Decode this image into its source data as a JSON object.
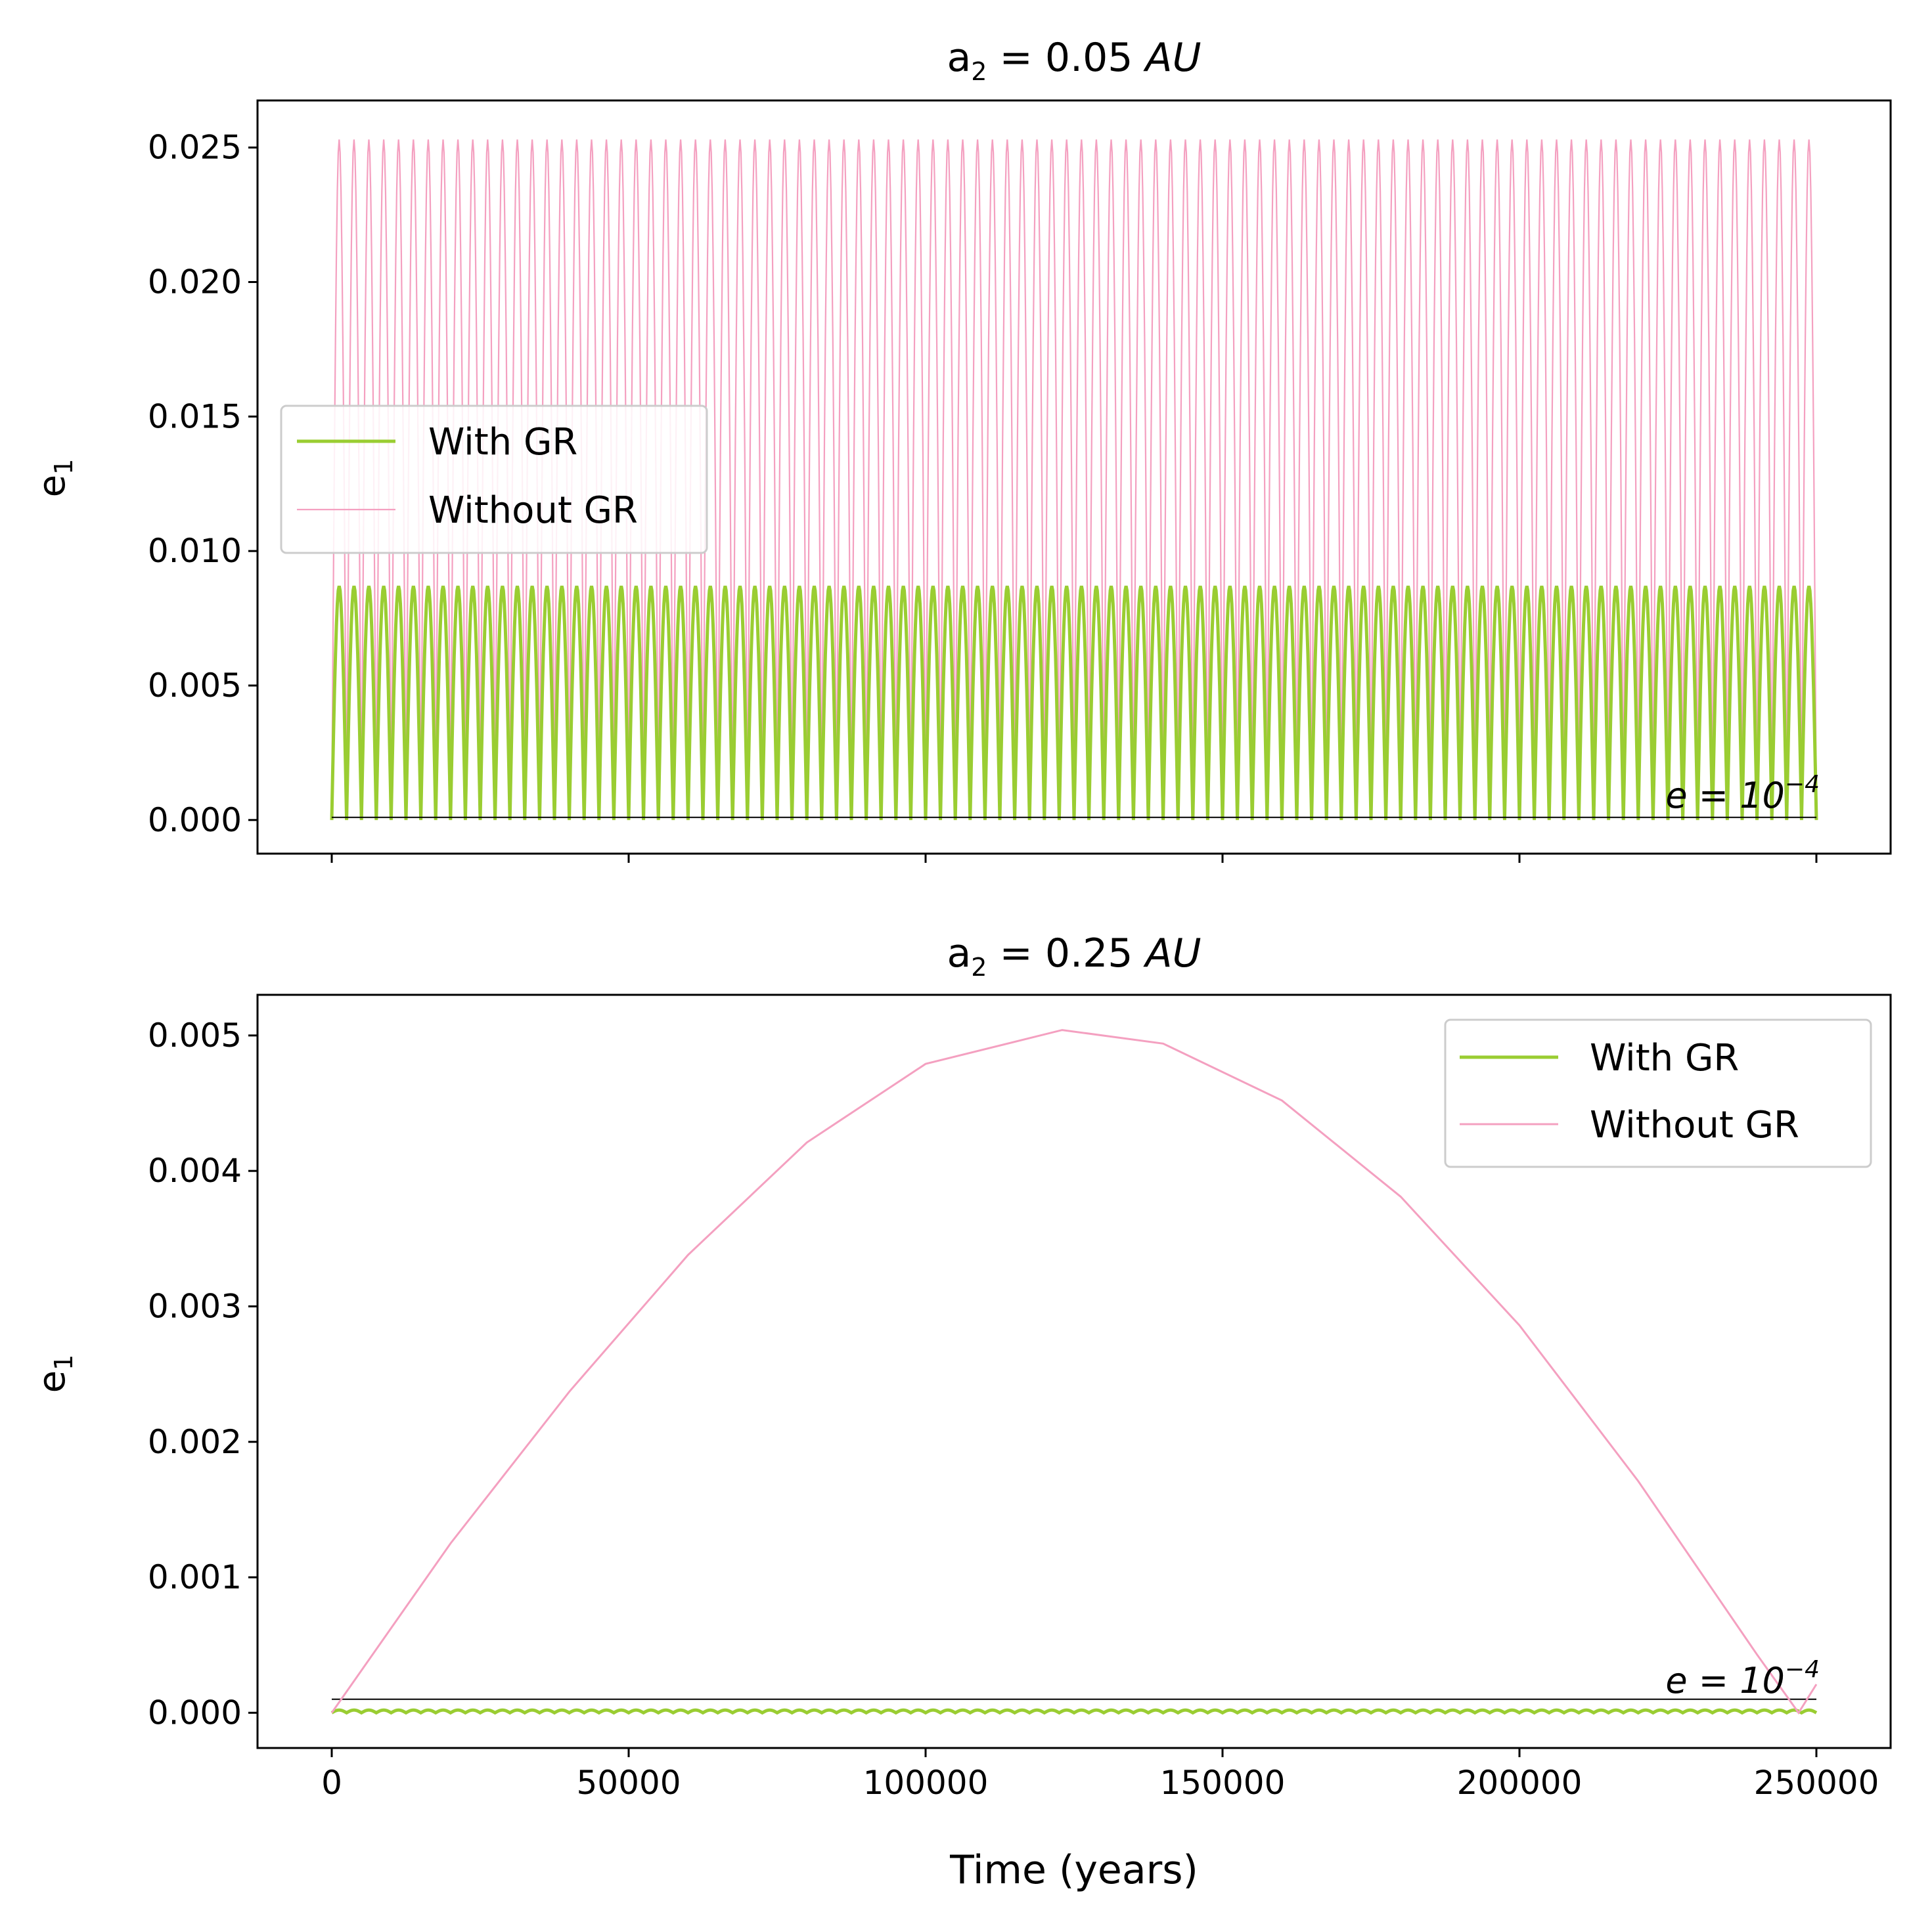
{
  "colors": {
    "with_gr": "#9ACD32",
    "without_gr": "#F4A0C0",
    "reference": "#000000",
    "axes": "#000000"
  },
  "chart_data": [
    {
      "type": "line",
      "title": {
        "main": "a",
        "sub": "2",
        "value": " = 0.05 ",
        "unit": "AU"
      },
      "ylabel": {
        "main": "e",
        "sub": "1"
      },
      "xlabel": "",
      "xlim": [
        -12500,
        262500
      ],
      "ylim": [
        -0.00125,
        0.02675
      ],
      "xticks": [
        0,
        50000,
        100000,
        150000,
        200000,
        250000
      ],
      "yticks": [
        0.0,
        0.005,
        0.01,
        0.015,
        0.02,
        0.025
      ],
      "ytick_labels": [
        "0.000",
        "0.005",
        "0.010",
        "0.015",
        "0.020",
        "0.025"
      ],
      "legend": {
        "placement": "center-left"
      },
      "reference_line": {
        "y": 0.0001,
        "label_base": "e = 10",
        "label_exp": "−4"
      },
      "series": [
        {
          "name": "Without GR",
          "shape": "oscillation",
          "period_years": 2500,
          "min": 0.0,
          "max": 0.0253,
          "x_start": 0,
          "x_end": 250000
        },
        {
          "name": "With GR",
          "shape": "oscillation",
          "period_years": 2500,
          "min": 0.0,
          "max": 0.0087,
          "x_start": 0,
          "x_end": 250000
        }
      ]
    },
    {
      "type": "line",
      "title": {
        "main": "a",
        "sub": "2",
        "value": " = 0.25 ",
        "unit": "AU"
      },
      "ylabel": {
        "main": "e",
        "sub": "1"
      },
      "xlabel": "Time (years)",
      "xlim": [
        -12500,
        262500
      ],
      "ylim": [
        -0.00026,
        0.0053
      ],
      "xticks": [
        0,
        50000,
        100000,
        150000,
        200000,
        250000
      ],
      "xtick_labels": [
        "0",
        "50000",
        "100000",
        "150000",
        "200000",
        "250000"
      ],
      "yticks": [
        0.0,
        0.001,
        0.002,
        0.003,
        0.004,
        0.005
      ],
      "ytick_labels": [
        "0.000",
        "0.001",
        "0.002",
        "0.003",
        "0.004",
        "0.005"
      ],
      "legend": {
        "placement": "top-right"
      },
      "reference_line": {
        "y": 0.0001,
        "label_base": "e = 10",
        "label_exp": "−4"
      },
      "series": [
        {
          "name": "Without GR",
          "x": [
            0,
            20000,
            40000,
            60000,
            80000,
            100000,
            123000,
            140000,
            160000,
            180000,
            200000,
            220000,
            240000,
            247000,
            250000
          ],
          "y": [
            0.0,
            0.00125,
            0.00237,
            0.00338,
            0.00421,
            0.00479,
            0.00504,
            0.00494,
            0.00452,
            0.00381,
            0.00286,
            0.00171,
            0.00043,
            0.0,
            0.00021
          ]
        },
        {
          "name": "With GR",
          "shape": "small-oscillation",
          "period_years": 2500,
          "min": 0.0,
          "max": 2e-05,
          "x_start": 0,
          "x_end": 250000
        }
      ]
    }
  ]
}
